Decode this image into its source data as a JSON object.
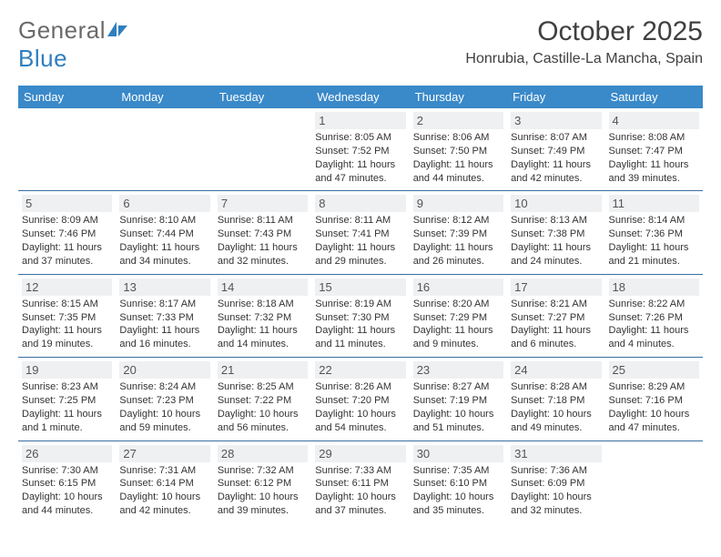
{
  "brand": {
    "part1": "General",
    "part2": "Blue"
  },
  "title": "October 2025",
  "location": "Honrubia, Castille-La Mancha, Spain",
  "colors": {
    "header_bg": "#3a89c9",
    "header_text": "#ffffff",
    "daynum_bg": "#eef0f2",
    "row_border": "#3a6fa0",
    "text": "#3a3a3a"
  },
  "dayNames": [
    "Sunday",
    "Monday",
    "Tuesday",
    "Wednesday",
    "Thursday",
    "Friday",
    "Saturday"
  ],
  "weeks": [
    [
      {
        "n": "",
        "sr": "",
        "ss": "",
        "dl": ""
      },
      {
        "n": "",
        "sr": "",
        "ss": "",
        "dl": ""
      },
      {
        "n": "",
        "sr": "",
        "ss": "",
        "dl": ""
      },
      {
        "n": "1",
        "sr": "Sunrise: 8:05 AM",
        "ss": "Sunset: 7:52 PM",
        "dl": "Daylight: 11 hours and 47 minutes."
      },
      {
        "n": "2",
        "sr": "Sunrise: 8:06 AM",
        "ss": "Sunset: 7:50 PM",
        "dl": "Daylight: 11 hours and 44 minutes."
      },
      {
        "n": "3",
        "sr": "Sunrise: 8:07 AM",
        "ss": "Sunset: 7:49 PM",
        "dl": "Daylight: 11 hours and 42 minutes."
      },
      {
        "n": "4",
        "sr": "Sunrise: 8:08 AM",
        "ss": "Sunset: 7:47 PM",
        "dl": "Daylight: 11 hours and 39 minutes."
      }
    ],
    [
      {
        "n": "5",
        "sr": "Sunrise: 8:09 AM",
        "ss": "Sunset: 7:46 PM",
        "dl": "Daylight: 11 hours and 37 minutes."
      },
      {
        "n": "6",
        "sr": "Sunrise: 8:10 AM",
        "ss": "Sunset: 7:44 PM",
        "dl": "Daylight: 11 hours and 34 minutes."
      },
      {
        "n": "7",
        "sr": "Sunrise: 8:11 AM",
        "ss": "Sunset: 7:43 PM",
        "dl": "Daylight: 11 hours and 32 minutes."
      },
      {
        "n": "8",
        "sr": "Sunrise: 8:11 AM",
        "ss": "Sunset: 7:41 PM",
        "dl": "Daylight: 11 hours and 29 minutes."
      },
      {
        "n": "9",
        "sr": "Sunrise: 8:12 AM",
        "ss": "Sunset: 7:39 PM",
        "dl": "Daylight: 11 hours and 26 minutes."
      },
      {
        "n": "10",
        "sr": "Sunrise: 8:13 AM",
        "ss": "Sunset: 7:38 PM",
        "dl": "Daylight: 11 hours and 24 minutes."
      },
      {
        "n": "11",
        "sr": "Sunrise: 8:14 AM",
        "ss": "Sunset: 7:36 PM",
        "dl": "Daylight: 11 hours and 21 minutes."
      }
    ],
    [
      {
        "n": "12",
        "sr": "Sunrise: 8:15 AM",
        "ss": "Sunset: 7:35 PM",
        "dl": "Daylight: 11 hours and 19 minutes."
      },
      {
        "n": "13",
        "sr": "Sunrise: 8:17 AM",
        "ss": "Sunset: 7:33 PM",
        "dl": "Daylight: 11 hours and 16 minutes."
      },
      {
        "n": "14",
        "sr": "Sunrise: 8:18 AM",
        "ss": "Sunset: 7:32 PM",
        "dl": "Daylight: 11 hours and 14 minutes."
      },
      {
        "n": "15",
        "sr": "Sunrise: 8:19 AM",
        "ss": "Sunset: 7:30 PM",
        "dl": "Daylight: 11 hours and 11 minutes."
      },
      {
        "n": "16",
        "sr": "Sunrise: 8:20 AM",
        "ss": "Sunset: 7:29 PM",
        "dl": "Daylight: 11 hours and 9 minutes."
      },
      {
        "n": "17",
        "sr": "Sunrise: 8:21 AM",
        "ss": "Sunset: 7:27 PM",
        "dl": "Daylight: 11 hours and 6 minutes."
      },
      {
        "n": "18",
        "sr": "Sunrise: 8:22 AM",
        "ss": "Sunset: 7:26 PM",
        "dl": "Daylight: 11 hours and 4 minutes."
      }
    ],
    [
      {
        "n": "19",
        "sr": "Sunrise: 8:23 AM",
        "ss": "Sunset: 7:25 PM",
        "dl": "Daylight: 11 hours and 1 minute."
      },
      {
        "n": "20",
        "sr": "Sunrise: 8:24 AM",
        "ss": "Sunset: 7:23 PM",
        "dl": "Daylight: 10 hours and 59 minutes."
      },
      {
        "n": "21",
        "sr": "Sunrise: 8:25 AM",
        "ss": "Sunset: 7:22 PM",
        "dl": "Daylight: 10 hours and 56 minutes."
      },
      {
        "n": "22",
        "sr": "Sunrise: 8:26 AM",
        "ss": "Sunset: 7:20 PM",
        "dl": "Daylight: 10 hours and 54 minutes."
      },
      {
        "n": "23",
        "sr": "Sunrise: 8:27 AM",
        "ss": "Sunset: 7:19 PM",
        "dl": "Daylight: 10 hours and 51 minutes."
      },
      {
        "n": "24",
        "sr": "Sunrise: 8:28 AM",
        "ss": "Sunset: 7:18 PM",
        "dl": "Daylight: 10 hours and 49 minutes."
      },
      {
        "n": "25",
        "sr": "Sunrise: 8:29 AM",
        "ss": "Sunset: 7:16 PM",
        "dl": "Daylight: 10 hours and 47 minutes."
      }
    ],
    [
      {
        "n": "26",
        "sr": "Sunrise: 7:30 AM",
        "ss": "Sunset: 6:15 PM",
        "dl": "Daylight: 10 hours and 44 minutes."
      },
      {
        "n": "27",
        "sr": "Sunrise: 7:31 AM",
        "ss": "Sunset: 6:14 PM",
        "dl": "Daylight: 10 hours and 42 minutes."
      },
      {
        "n": "28",
        "sr": "Sunrise: 7:32 AM",
        "ss": "Sunset: 6:12 PM",
        "dl": "Daylight: 10 hours and 39 minutes."
      },
      {
        "n": "29",
        "sr": "Sunrise: 7:33 AM",
        "ss": "Sunset: 6:11 PM",
        "dl": "Daylight: 10 hours and 37 minutes."
      },
      {
        "n": "30",
        "sr": "Sunrise: 7:35 AM",
        "ss": "Sunset: 6:10 PM",
        "dl": "Daylight: 10 hours and 35 minutes."
      },
      {
        "n": "31",
        "sr": "Sunrise: 7:36 AM",
        "ss": "Sunset: 6:09 PM",
        "dl": "Daylight: 10 hours and 32 minutes."
      },
      {
        "n": "",
        "sr": "",
        "ss": "",
        "dl": ""
      }
    ]
  ]
}
